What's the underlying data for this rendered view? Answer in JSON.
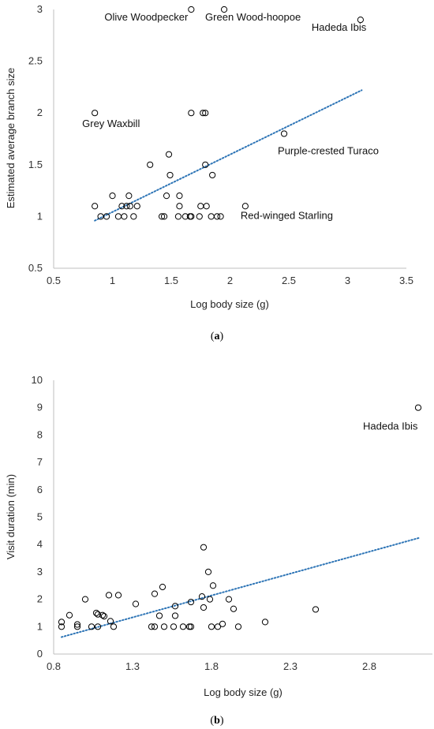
{
  "chart_data": [
    {
      "type": "scatter",
      "caption_letter": "a",
      "xlabel": "Log body size (g)",
      "ylabel": "Estimated average branch size",
      "xlim": [
        0.5,
        3.5
      ],
      "ylim": [
        0.5,
        3
      ],
      "xticks": [
        "0.5",
        "1",
        "1.5",
        "2",
        "2.5",
        "3",
        "3.5"
      ],
      "yticks": [
        "0.5",
        "1",
        "1.5",
        "2",
        "2.5",
        "3"
      ],
      "grid": false,
      "trendline": {
        "style": "dotted",
        "color": "#2e75b6",
        "x": [
          0.85,
          3.12
        ],
        "y": [
          0.96,
          2.22
        ]
      },
      "points": [
        {
          "x": 0.85,
          "y": 2.0
        },
        {
          "x": 0.85,
          "y": 1.1
        },
        {
          "x": 0.9,
          "y": 1.0
        },
        {
          "x": 0.95,
          "y": 1.0
        },
        {
          "x": 1.0,
          "y": 1.2
        },
        {
          "x": 1.05,
          "y": 1.0
        },
        {
          "x": 1.08,
          "y": 1.1
        },
        {
          "x": 1.1,
          "y": 1.0
        },
        {
          "x": 1.12,
          "y": 1.1
        },
        {
          "x": 1.14,
          "y": 1.2
        },
        {
          "x": 1.15,
          "y": 1.1
        },
        {
          "x": 1.18,
          "y": 1.0
        },
        {
          "x": 1.21,
          "y": 1.1
        },
        {
          "x": 1.32,
          "y": 1.5
        },
        {
          "x": 1.42,
          "y": 1.0
        },
        {
          "x": 1.44,
          "y": 1.0
        },
        {
          "x": 1.46,
          "y": 1.2
        },
        {
          "x": 1.48,
          "y": 1.6
        },
        {
          "x": 1.49,
          "y": 1.4
        },
        {
          "x": 1.56,
          "y": 1.0
        },
        {
          "x": 1.57,
          "y": 1.2
        },
        {
          "x": 1.57,
          "y": 1.1
        },
        {
          "x": 1.62,
          "y": 1.0
        },
        {
          "x": 1.66,
          "y": 1.0
        },
        {
          "x": 1.67,
          "y": 1.0
        },
        {
          "x": 1.67,
          "y": 2.0
        },
        {
          "x": 1.67,
          "y": 3.0
        },
        {
          "x": 1.74,
          "y": 1.0
        },
        {
          "x": 1.75,
          "y": 1.1
        },
        {
          "x": 1.77,
          "y": 2.0
        },
        {
          "x": 1.79,
          "y": 2.0
        },
        {
          "x": 1.79,
          "y": 1.5
        },
        {
          "x": 1.8,
          "y": 1.1
        },
        {
          "x": 1.84,
          "y": 1.0
        },
        {
          "x": 1.85,
          "y": 1.4
        },
        {
          "x": 1.89,
          "y": 1.0
        },
        {
          "x": 1.92,
          "y": 1.0
        },
        {
          "x": 1.95,
          "y": 3.0
        },
        {
          "x": 2.13,
          "y": 1.1
        },
        {
          "x": 2.46,
          "y": 1.8
        },
        {
          "x": 3.11,
          "y": 2.9
        }
      ],
      "annotations": [
        {
          "text": "Olive Woodpecker",
          "x": 1.67,
          "y": 3.0
        },
        {
          "text": "Green Wood-hoopoe",
          "x": 1.95,
          "y": 3.0
        },
        {
          "text": "Hadeda Ibis",
          "x": 3.11,
          "y": 2.9
        },
        {
          "text": "Grey Waxbill",
          "x": 0.85,
          "y": 2.0
        },
        {
          "text": "Purple-crested Turaco",
          "x": 2.46,
          "y": 1.8
        },
        {
          "text": "Red-winged Starling",
          "x": 2.13,
          "y": 1.1
        }
      ]
    },
    {
      "type": "scatter",
      "caption_letter": "b",
      "xlabel": "Log body size (g)",
      "ylabel": "Visit duration (min)",
      "xlim": [
        0.8,
        3.2
      ],
      "ylim": [
        0,
        10
      ],
      "xticks": [
        "0.8",
        "1.3",
        "1.8",
        "2.3",
        "2.8"
      ],
      "yticks": [
        "0",
        "1",
        "2",
        "3",
        "4",
        "5",
        "6",
        "7",
        "8",
        "9",
        "10"
      ],
      "grid": false,
      "trendline": {
        "style": "dotted",
        "color": "#2e75b6",
        "x": [
          0.85,
          3.12
        ],
        "y": [
          0.62,
          4.25
        ]
      },
      "points": [
        {
          "x": 0.85,
          "y": 1.0
        },
        {
          "x": 0.85,
          "y": 1.17
        },
        {
          "x": 0.9,
          "y": 1.42
        },
        {
          "x": 0.95,
          "y": 1.0
        },
        {
          "x": 0.95,
          "y": 1.08
        },
        {
          "x": 1.0,
          "y": 2.0
        },
        {
          "x": 1.04,
          "y": 1.0
        },
        {
          "x": 1.07,
          "y": 1.5
        },
        {
          "x": 1.08,
          "y": 1.0
        },
        {
          "x": 1.08,
          "y": 1.45
        },
        {
          "x": 1.11,
          "y": 1.42
        },
        {
          "x": 1.12,
          "y": 1.38
        },
        {
          "x": 1.15,
          "y": 2.15
        },
        {
          "x": 1.16,
          "y": 1.2
        },
        {
          "x": 1.18,
          "y": 1.0
        },
        {
          "x": 1.21,
          "y": 2.15
        },
        {
          "x": 1.32,
          "y": 1.83
        },
        {
          "x": 1.42,
          "y": 1.0
        },
        {
          "x": 1.44,
          "y": 1.0
        },
        {
          "x": 1.44,
          "y": 2.2
        },
        {
          "x": 1.47,
          "y": 1.4
        },
        {
          "x": 1.49,
          "y": 2.45
        },
        {
          "x": 1.5,
          "y": 1.0
        },
        {
          "x": 1.56,
          "y": 1.0
        },
        {
          "x": 1.57,
          "y": 1.4
        },
        {
          "x": 1.57,
          "y": 1.75
        },
        {
          "x": 1.62,
          "y": 1.0
        },
        {
          "x": 1.66,
          "y": 1.0
        },
        {
          "x": 1.67,
          "y": 1.0
        },
        {
          "x": 1.67,
          "y": 1.9
        },
        {
          "x": 1.74,
          "y": 2.1
        },
        {
          "x": 1.75,
          "y": 3.9
        },
        {
          "x": 1.75,
          "y": 1.7
        },
        {
          "x": 1.78,
          "y": 3.0
        },
        {
          "x": 1.79,
          "y": 2.0
        },
        {
          "x": 1.8,
          "y": 1.0
        },
        {
          "x": 1.81,
          "y": 2.5
        },
        {
          "x": 1.84,
          "y": 1.0
        },
        {
          "x": 1.87,
          "y": 1.1
        },
        {
          "x": 1.91,
          "y": 2.0
        },
        {
          "x": 1.94,
          "y": 1.65
        },
        {
          "x": 1.97,
          "y": 1.0
        },
        {
          "x": 2.14,
          "y": 1.17
        },
        {
          "x": 2.46,
          "y": 1.63
        },
        {
          "x": 3.11,
          "y": 9.0
        }
      ],
      "annotations": [
        {
          "text": "Hadeda Ibis",
          "x": 3.11,
          "y": 9.0
        }
      ]
    }
  ]
}
